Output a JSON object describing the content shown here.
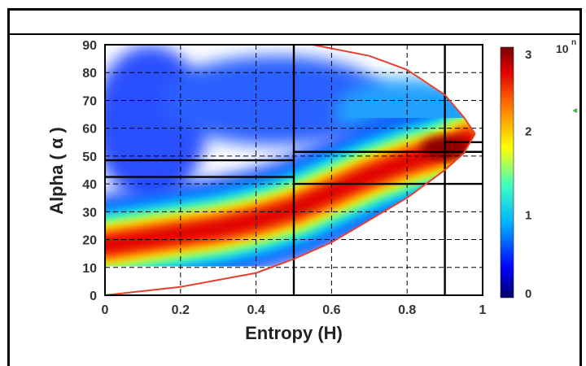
{
  "chart_data": {
    "type": "heatmap",
    "title": "",
    "xlabel": "Entropy (H)",
    "ylabel": "Alpha ( α )",
    "xlim": [
      0,
      1
    ],
    "ylim": [
      0,
      90
    ],
    "x_ticks": [
      0,
      0.2,
      0.4,
      0.6,
      0.8,
      1
    ],
    "x_tick_labels": [
      "0",
      "0.2",
      "0.4",
      "0.6",
      "0.8",
      "1"
    ],
    "y_ticks": [
      0,
      10,
      20,
      30,
      40,
      50,
      60,
      70,
      80,
      90
    ],
    "y_tick_labels": [
      "0",
      "10",
      "20",
      "30",
      "40",
      "50",
      "60",
      "70",
      "80",
      "90"
    ],
    "grid": "dashed",
    "colorbar": {
      "range": [
        0,
        3
      ],
      "ticks": [
        0,
        1,
        2,
        3
      ],
      "tick_labels": [
        "0",
        "1",
        "2",
        "3"
      ],
      "exponent_label": "10",
      "exponent_sup": "n",
      "colors": [
        "#00006a",
        "#0000ff",
        "#00b4ff",
        "#40ffc0",
        "#ffff00",
        "#ff6a00",
        "#e00000",
        "#7a0000"
      ]
    },
    "density_ridge": [
      {
        "x": 0.0,
        "y": 18
      },
      {
        "x": 0.1,
        "y": 20
      },
      {
        "x": 0.2,
        "y": 22
      },
      {
        "x": 0.3,
        "y": 24
      },
      {
        "x": 0.4,
        "y": 27
      },
      {
        "x": 0.5,
        "y": 31
      },
      {
        "x": 0.6,
        "y": 37
      },
      {
        "x": 0.7,
        "y": 43
      },
      {
        "x": 0.8,
        "y": 48
      },
      {
        "x": 0.9,
        "y": 52
      },
      {
        "x": 0.96,
        "y": 56
      }
    ],
    "feasible_boundary": {
      "color": "#e8402f",
      "upper": [
        [
          0.55,
          90
        ],
        [
          0.7,
          86
        ],
        [
          0.8,
          81
        ],
        [
          0.9,
          72
        ],
        [
          0.95,
          64
        ],
        [
          0.98,
          58
        ]
      ],
      "lower": [
        [
          0,
          0
        ],
        [
          0.2,
          3
        ],
        [
          0.4,
          8
        ],
        [
          0.5,
          13
        ],
        [
          0.6,
          19
        ],
        [
          0.7,
          27
        ],
        [
          0.8,
          35
        ],
        [
          0.9,
          45
        ],
        [
          0.95,
          51
        ],
        [
          0.98,
          58
        ]
      ]
    },
    "zone_lines": {
      "vertical": [
        0.5,
        0.9
      ],
      "horizontal_segments": [
        {
          "y": 42.5,
          "x0": 0,
          "x1": 0.5
        },
        {
          "y": 48.5,
          "x0": 0,
          "x1": 0.5
        },
        {
          "y": 40.0,
          "x0": 0.5,
          "x1": 1.0
        },
        {
          "y": 51.5,
          "x0": 0.5,
          "x1": 1.0
        },
        {
          "y": 55.0,
          "x0": 0.9,
          "x1": 1.0
        }
      ]
    }
  }
}
